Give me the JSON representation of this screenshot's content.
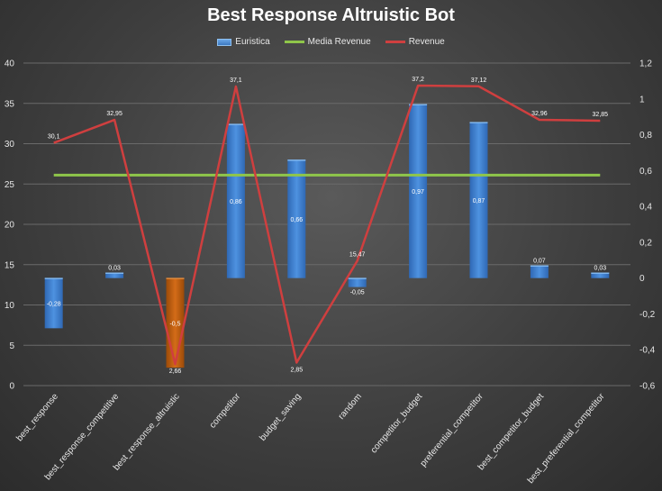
{
  "chart_data": {
    "type": "bar-line-combo",
    "title": "Best Response Altruistic Bot",
    "legend_position": "top",
    "legend": [
      "Euristica",
      "Media Revenue",
      "Revenue"
    ],
    "categories": [
      "best_response",
      "best_response_competitive",
      "best_response_altruistic",
      "competitor",
      "budget_saving",
      "random",
      "competitor_budget",
      "preferential_competitor",
      "best_competitor_budget",
      "best_preferential_competitor"
    ],
    "left_axis": {
      "min": 0,
      "max": 40,
      "ticks": [
        "0",
        "5",
        "10",
        "15",
        "20",
        "25",
        "30",
        "35",
        "40"
      ]
    },
    "right_axis": {
      "min": -0.6,
      "max": 1.2,
      "ticks": [
        "-0,6",
        "-0,4",
        "-0,2",
        "0",
        "0,2",
        "0,4",
        "0,6",
        "0,8",
        "1",
        "1,2"
      ]
    },
    "series": [
      {
        "name": "Euristica",
        "type": "bar",
        "axis": "right",
        "values": [
          -0.28,
          0.03,
          -0.5,
          0.86,
          0.66,
          -0.05,
          0.97,
          0.87,
          0.07,
          0.03
        ],
        "labels": [
          "-0,28",
          "0,03",
          "-0,5",
          "0,86",
          "0,66",
          "-0,05",
          "0,97",
          "0,87",
          "0,07",
          "0,03"
        ],
        "colors": [
          "#3f82d4",
          "#3f82d4",
          "#c0600e",
          "#3f82d4",
          "#3f82d4",
          "#3f82d4",
          "#3f82d4",
          "#3f82d4",
          "#3f82d4",
          "#3f82d4"
        ]
      },
      {
        "name": "Media Revenue",
        "type": "line",
        "axis": "left",
        "color": "#8fc64a",
        "values": [
          26.1,
          26.1,
          26.1,
          26.1,
          26.1,
          26.1,
          26.1,
          26.1,
          26.1,
          26.1
        ]
      },
      {
        "name": "Revenue",
        "type": "line",
        "axis": "left",
        "color": "#cf3f3f",
        "values": [
          30.1,
          32.95,
          2.66,
          37.1,
          2.85,
          15.47,
          37.2,
          37.12,
          32.96,
          32.85
        ],
        "labels": [
          "30,1",
          "32,95",
          "2,66",
          "37,1",
          "2,85",
          "15,47",
          "37,2",
          "37,12",
          "32,96",
          "32,85"
        ]
      }
    ]
  }
}
